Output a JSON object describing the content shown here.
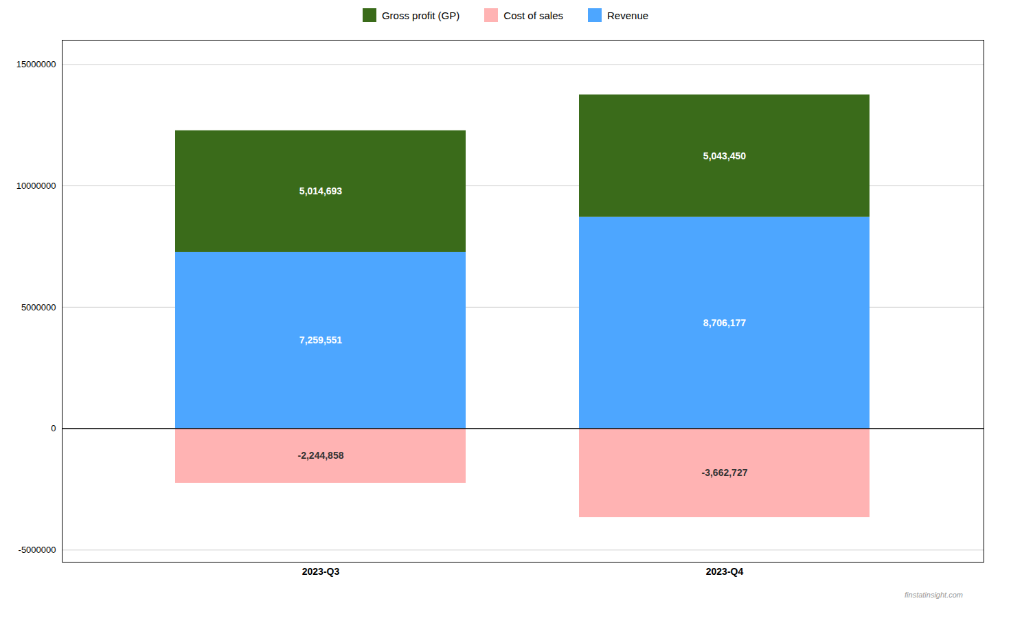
{
  "chart_data": {
    "type": "bar",
    "stacked": true,
    "categories": [
      "2023-Q3",
      "2023-Q4"
    ],
    "series": [
      {
        "name": "Gross profit (GP)",
        "color": "#3a6b1a",
        "values": [
          5014693,
          5043450
        ],
        "value_labels": [
          "5,014,693",
          "5,043,450"
        ]
      },
      {
        "name": "Cost of sales",
        "color": "#ffb3b3",
        "values": [
          -2244858,
          -3662727
        ],
        "value_labels": [
          "-2,244,858",
          "-3,662,727"
        ]
      },
      {
        "name": "Revenue",
        "color": "#4da6ff",
        "values": [
          7259551,
          8706177
        ],
        "value_labels": [
          "7,259,551",
          "8,706,177"
        ]
      }
    ],
    "ylim": [
      -5500000,
      16000000
    ],
    "yticks": [
      -5000000,
      0,
      5000000,
      10000000,
      15000000
    ],
    "grid": true,
    "legend": "top",
    "data_labels": true,
    "annotations": [
      {
        "text": "finstatinsight.com"
      }
    ]
  }
}
